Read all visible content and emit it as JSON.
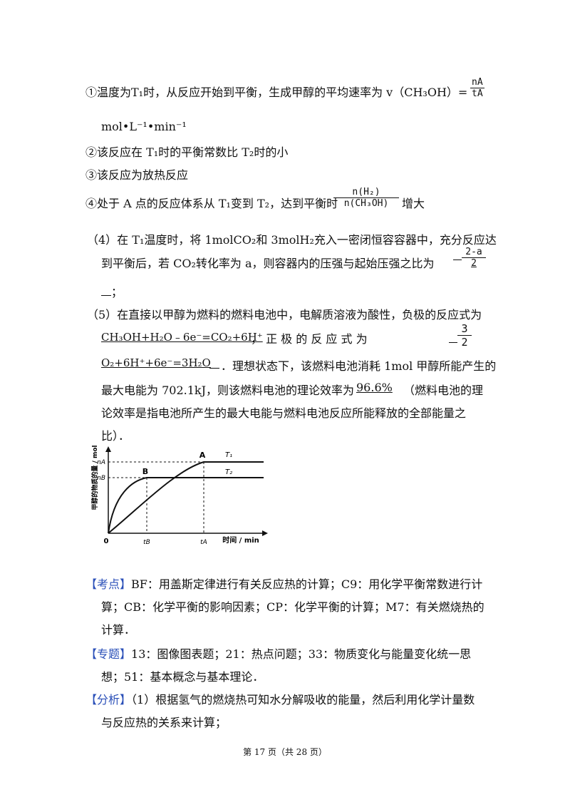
{
  "items": {
    "i1_a": "①温度为T₁时，从反应开始到平衡，生成甲醇的平均速率为 v（CH₃OH）=",
    "i1_num": "nA",
    "i1_den": "tA",
    "i1_b": "mol•L⁻¹•min⁻¹",
    "i2": "②该反应在 T₁时的平衡常数比 T₂时的小",
    "i3": "③该反应为放热反应",
    "i4_a": "④处于 A 点的反应体系从 T₁变到 T₂，达到平衡时",
    "i4_num": "n(H₂)",
    "i4_den": "n(CH₃OH)",
    "i4_b": "增大"
  },
  "q4": {
    "line1": "（4）在 T₁温度时，将 1molCO₂和 3molH₂充入一密闭恒容容器中，充分反应达",
    "line2": "到平衡后，若 CO₂转化率为 a，则容器内的压强与起始压强之比为",
    "ans_num": "2-a",
    "ans_den": "2",
    "line3": "；"
  },
  "q5": {
    "line1": "（5）在直接以甲醇为燃料的燃料电池中，电解质溶液为酸性，负极的反应式为",
    "anode": "CH₃OH+H₂O﹣6e⁻=CO₂+6H⁺",
    "line2_mid": "，  正 极 的 反 应 式 为",
    "ans_frac_num": "3",
    "ans_frac_den": "2",
    "cathode": "O₂+6H⁺+6e⁻=3H₂O",
    "line3_rest": "．理想状态下，该燃料电池消耗 1mol 甲醇所能产生的",
    "line4_a": "最大电能为 702.1kJ，则该燃料电池的理论效率为",
    "eff": "96.6%",
    "line4_b": "（燃料电池的理",
    "line5": "论效率是指电池所产生的最大电能与燃料电池反应所能释放的全部能量之",
    "line6": "比）．"
  },
  "chart_data": {
    "type": "line",
    "ylabel": "甲醇的物质的量 / mol",
    "xlabel": "时间 / min",
    "origin": "0",
    "x_ticks": [
      "tB",
      "tA"
    ],
    "y_ticks": [
      "nA",
      "nB"
    ],
    "points": [
      "A",
      "B"
    ],
    "series": [
      {
        "name": "T₁",
        "note": "rises slowly to nA at tA, then flat"
      },
      {
        "name": "T₂",
        "note": "rises quickly to nB at tB, then flat"
      }
    ]
  },
  "analysis": {
    "kaodian_tag": "【考点】",
    "kaodian_1": "BF：用盖斯定律进行有关反应热的计算；C9：用化学平衡常数进行计",
    "kaodian_2": "算；CB：化学平衡的影响因素；CP：化学平衡的计算；M7：有关燃烧热的",
    "kaodian_3": "计算．",
    "zhuanti_tag": "【专题】",
    "zhuanti_1": "13：图像图表题；21：热点问题；33：物质变化与能量变化统一思",
    "zhuanti_2": "想；51：基本概念与基本理论．",
    "fenxi_tag": "【分析】",
    "fenxi_1": "（1）根据氢气的燃烧热可知水分解吸收的能量，然后利用化学计量数",
    "fenxi_2": "与反应热的关系来计算；"
  },
  "footer": {
    "text": "第 17 页（共 28 页）"
  }
}
